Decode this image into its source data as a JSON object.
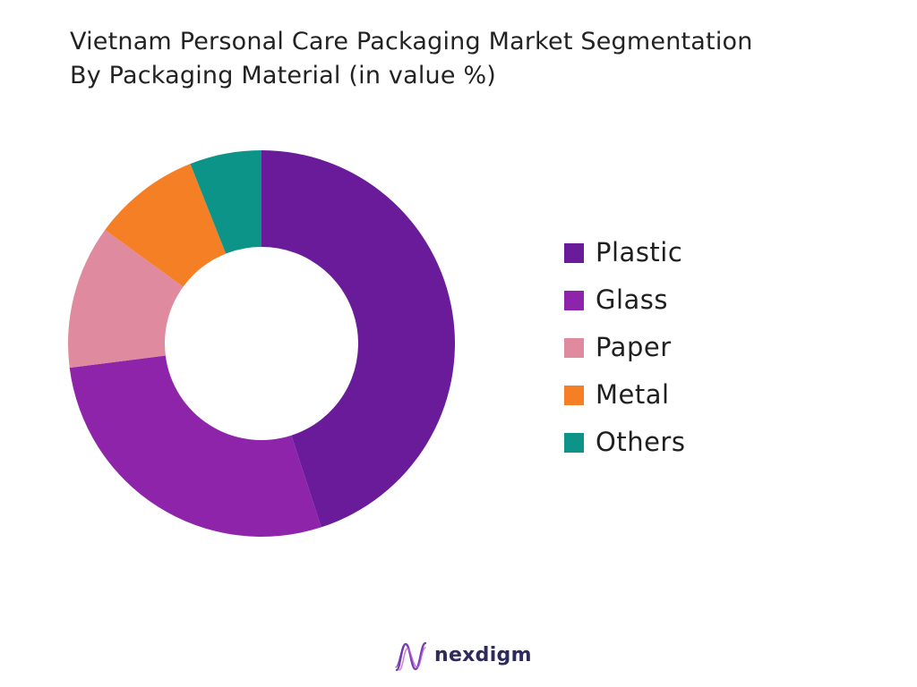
{
  "title": {
    "line1": "Vietnam Personal Care Packaging Market Segmentation",
    "line2": "By Packaging Material (in value %)"
  },
  "chart_data": {
    "type": "pie",
    "variant": "donut",
    "title": "Vietnam Personal Care Packaging Market Segmentation By Packaging Material (in value %)",
    "legend_position": "right",
    "series": [
      {
        "name": "Plastic",
        "value": 45,
        "color": "#6a1b9a"
      },
      {
        "name": "Glass",
        "value": 28,
        "color": "#8e24aa"
      },
      {
        "name": "Paper",
        "value": 12,
        "color": "#df8a9f"
      },
      {
        "name": "Metal",
        "value": 9,
        "color": "#f47f24"
      },
      {
        "name": "Others",
        "value": 6,
        "color": "#0d9488"
      }
    ]
  },
  "brand": {
    "name": "nexdigm",
    "logo_icon": "nexdigm-logo-icon"
  }
}
